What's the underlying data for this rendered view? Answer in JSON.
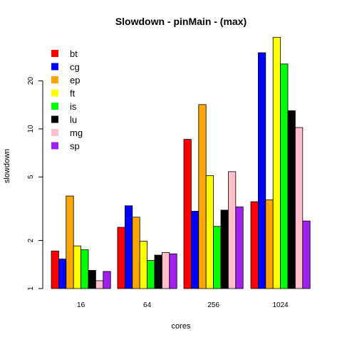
{
  "chart_data": {
    "type": "bar",
    "title": "Slowdown - pinMain - (max)",
    "xlabel": "cores",
    "ylabel": "slowdown",
    "y_scale": "log",
    "ylim": [
      1,
      40
    ],
    "yticks": [
      1,
      2,
      5,
      10,
      20
    ],
    "grid": false,
    "legend_position": "top-left",
    "categories": [
      "16",
      "64",
      "256",
      "1024"
    ],
    "series": [
      {
        "name": "bt",
        "color": "#ff0000",
        "values": [
          1.72,
          2.42,
          8.6,
          3.5
        ]
      },
      {
        "name": "cg",
        "color": "#0000ff",
        "values": [
          1.53,
          3.3,
          3.05,
          30.0
        ]
      },
      {
        "name": "ep",
        "color": "#ffa500",
        "values": [
          3.8,
          2.8,
          14.2,
          3.6
        ]
      },
      {
        "name": "ft",
        "color": "#ffff00",
        "values": [
          1.85,
          1.98,
          5.1,
          37.5
        ]
      },
      {
        "name": "is",
        "color": "#00ff00",
        "values": [
          1.75,
          1.5,
          2.45,
          25.5
        ]
      },
      {
        "name": "lu",
        "color": "#000000",
        "values": [
          1.3,
          1.62,
          3.1,
          13.0
        ]
      },
      {
        "name": "mg",
        "color": "#ffc0cb",
        "values": [
          1.12,
          1.68,
          5.4,
          10.2
        ]
      },
      {
        "name": "sp",
        "color": "#a020f0",
        "values": [
          1.28,
          1.65,
          3.25,
          2.65
        ]
      }
    ]
  }
}
